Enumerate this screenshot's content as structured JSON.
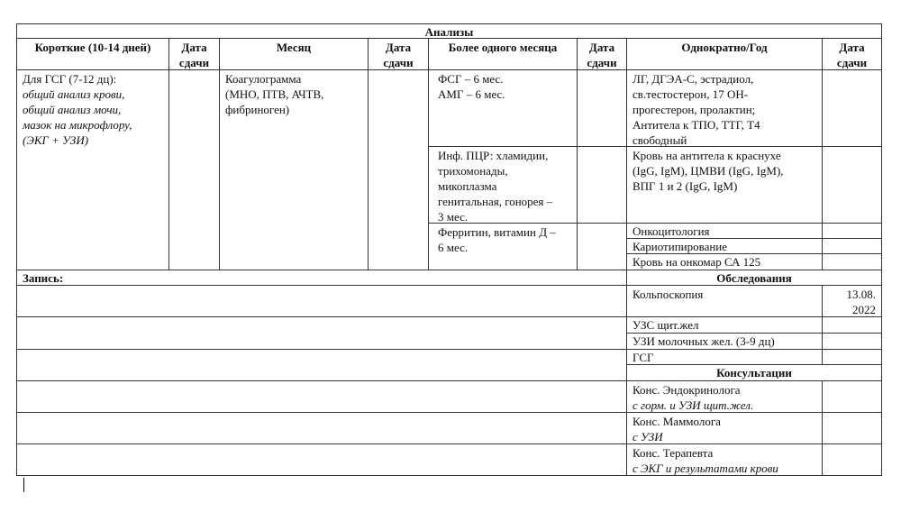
{
  "title": "Анализы",
  "headers": {
    "short": "Короткие (10-14 дней)",
    "date": "Дата сдачи",
    "month": "Месяц",
    "more_than_month": "Более одного месяца",
    "once_year": "Однократно/Год"
  },
  "short": {
    "line1": "Для ГСГ (7-12 дц):",
    "items": "общий анализ крови,\nобщий анализ мочи,\nмазок на микрофлору,\n(ЭКГ + УЗИ)"
  },
  "month": {
    "item": "Коагулограмма\n(МНО, ПТВ, АЧТВ,\nфибриноген)"
  },
  "more": [
    "ФСГ –  6 мес.\nАМГ –  6 мес.",
    "Инф. ПЦР: хламидии,\nтрихомонады,\nмикоплазма\nгенитальная, гонорея –\n3 мес.",
    "Ферритин, витамин Д –\n6 мес."
  ],
  "once": [
    "ЛГ, ДГЭА-С, эстрадиол,\nсв.тестостерон, 17 ОН-\nпрогестерон, пролактин;\nАнтитела к ТПО, ТТГ, Т4\nсвободный",
    "Кровь на антитела к краснухе\n(IgG, IgM), ЦМВИ (IgG, IgM),\nВПГ 1 и 2 (IgG, IgM)",
    "Онкоцитология",
    "Кариотипирование",
    "Кровь на онкомар СА 125"
  ],
  "record_label": "Запись:",
  "exams": {
    "heading": "Обследования",
    "items": [
      {
        "name": "Кольпоскопия",
        "date": "13.08.\n2022"
      },
      {
        "name": "УЗС щит.жел",
        "date": ""
      },
      {
        "name": "УЗИ молочных жел.  (3-9 дц)",
        "date": ""
      },
      {
        "name": "ГСГ",
        "date": ""
      }
    ]
  },
  "consults": {
    "heading": "Консультации",
    "items": [
      {
        "name": "Конс. Эндокринолога",
        "note": "с горм.  и УЗИ щит.жел."
      },
      {
        "name": "Конс. Маммолога",
        "note": "с УЗИ"
      },
      {
        "name": "Конс. Терапевта",
        "note": "с ЭКГ и результатами крови"
      }
    ]
  }
}
